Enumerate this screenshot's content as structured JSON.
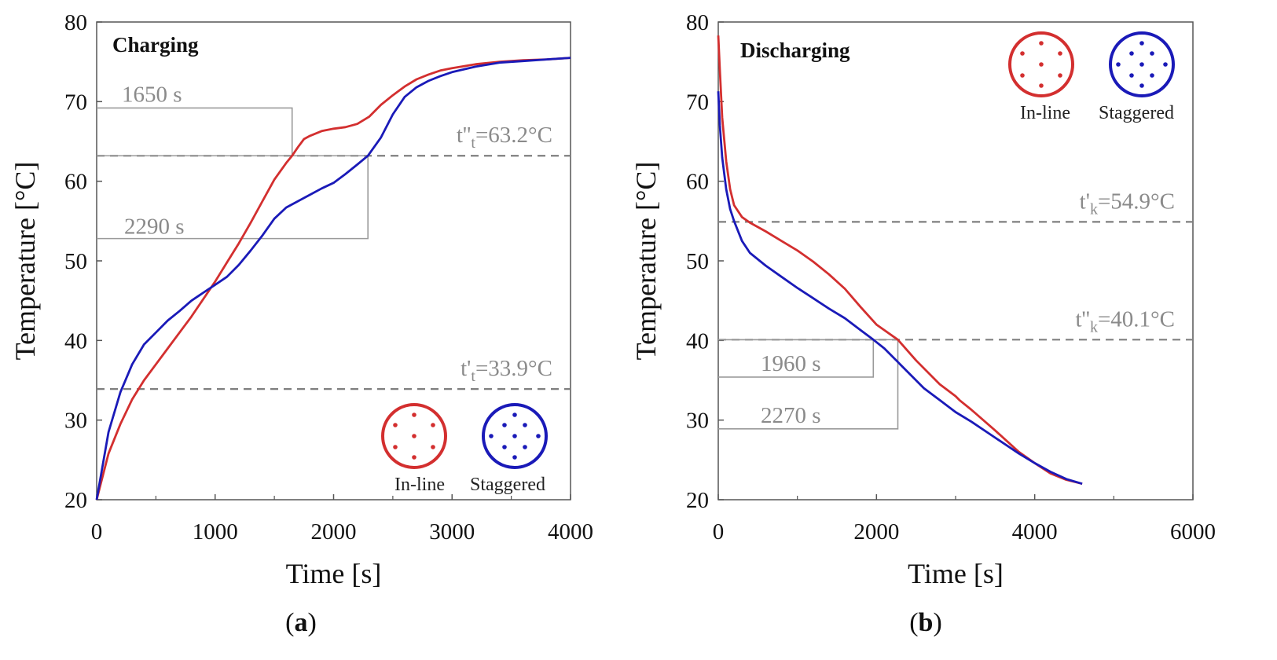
{
  "colors": {
    "inline": "#d32f2f",
    "staggered": "#1a1ab8",
    "threshold": "#7f7f7f",
    "marker": "#9a9a9a",
    "axis": "#555555"
  },
  "chart_data": [
    {
      "type": "line",
      "title": "Charging",
      "caption": {
        "open": "(",
        "letter": "a",
        "close": ")"
      },
      "xlabel": "Time [s]",
      "ylabel": "Temperature [°C]",
      "xlim": [
        0,
        4000
      ],
      "ylim": [
        20,
        80
      ],
      "xticks": [
        0,
        1000,
        2000,
        3000,
        4000
      ],
      "xtick_labels": [
        "0",
        "1000",
        "2000",
        "3000",
        "4000"
      ],
      "yticks": [
        20,
        30,
        40,
        50,
        60,
        70,
        80
      ],
      "ytick_labels": [
        "20",
        "30",
        "40",
        "50",
        "60",
        "70",
        "80"
      ],
      "thresholds": [
        {
          "y": 63.2,
          "label_main": "t''",
          "label_sub": "t",
          "label_rest": "=63.2°C"
        },
        {
          "y": 33.9,
          "label_main": "t'",
          "label_sub": "t",
          "label_rest": "=33.9°C"
        }
      ],
      "markers": [
        {
          "x": 1650,
          "y_top": 69.2,
          "y_bottom": 63.2,
          "label": "1650 s"
        },
        {
          "x": 2290,
          "y_top": 63.2,
          "y_bottom": 52.8,
          "label": "2290 s"
        }
      ],
      "legend": [
        "In-line",
        "Staggered"
      ],
      "legend_position": "bottom-right",
      "series": [
        {
          "name": "In-line",
          "color_key": "inline",
          "x": [
            0,
            100,
            200,
            300,
            400,
            500,
            600,
            700,
            800,
            900,
            1000,
            1100,
            1200,
            1300,
            1400,
            1500,
            1600,
            1650,
            1700,
            1750,
            1800,
            1900,
            2000,
            2100,
            2200,
            2300,
            2400,
            2500,
            2600,
            2700,
            2800,
            2900,
            3000,
            3200,
            3400,
            3600,
            3800,
            4000
          ],
          "y": [
            20,
            25.8,
            29.5,
            32.6,
            35.0,
            37.0,
            39.0,
            41.0,
            43.0,
            45.2,
            47.4,
            49.8,
            52.2,
            54.8,
            57.5,
            60.2,
            62.3,
            63.2,
            64.3,
            65.3,
            65.7,
            66.3,
            66.6,
            66.8,
            67.2,
            68.1,
            69.6,
            70.8,
            71.9,
            72.8,
            73.4,
            73.9,
            74.2,
            74.7,
            75.0,
            75.2,
            75.3,
            75.5
          ]
        },
        {
          "name": "Staggered",
          "color_key": "staggered",
          "x": [
            0,
            100,
            200,
            300,
            400,
            500,
            600,
            700,
            800,
            900,
            1000,
            1100,
            1200,
            1300,
            1400,
            1500,
            1600,
            1700,
            1800,
            1900,
            2000,
            2100,
            2200,
            2290,
            2400,
            2500,
            2600,
            2700,
            2800,
            2900,
            3000,
            3200,
            3400,
            3600,
            3800,
            4000
          ],
          "y": [
            20,
            28.5,
            33.5,
            37.0,
            39.5,
            41.0,
            42.5,
            43.7,
            45.0,
            46.0,
            47.0,
            48.0,
            49.5,
            51.3,
            53.2,
            55.3,
            56.7,
            57.5,
            58.3,
            59.1,
            59.8,
            60.9,
            62.1,
            63.2,
            65.5,
            68.4,
            70.6,
            71.8,
            72.6,
            73.2,
            73.7,
            74.4,
            74.9,
            75.1,
            75.3,
            75.5
          ]
        }
      ]
    },
    {
      "type": "line",
      "title": "Discharging",
      "caption": {
        "open": "(",
        "letter": "b",
        "close": ")"
      },
      "xlabel": "Time [s]",
      "ylabel": "Temperature [°C]",
      "xlim": [
        0,
        6000
      ],
      "ylim": [
        20,
        80
      ],
      "xticks": [
        0,
        2000,
        4000,
        6000
      ],
      "xtick_labels": [
        "0",
        "2000",
        "4000",
        "6000"
      ],
      "yticks": [
        20,
        30,
        40,
        50,
        60,
        70,
        80
      ],
      "ytick_labels": [
        "20",
        "30",
        "40",
        "50",
        "60",
        "70",
        "80"
      ],
      "thresholds": [
        {
          "y": 54.9,
          "label_main": "t'",
          "label_sub": "k",
          "label_rest": "=54.9°C"
        },
        {
          "y": 40.1,
          "label_main": "t''",
          "label_sub": "k",
          "label_rest": "=40.1°C"
        }
      ],
      "markers": [
        {
          "x": 1960,
          "y_top": 40.1,
          "y_bottom": 35.4,
          "label": "1960 s"
        },
        {
          "x": 2270,
          "y_top": 40.1,
          "y_bottom": 28.9,
          "label": "2270 s"
        }
      ],
      "legend": [
        "In-line",
        "Staggered"
      ],
      "legend_position": "top-right",
      "series": [
        {
          "name": "In-line",
          "color_key": "inline",
          "x": [
            0,
            20,
            50,
            100,
            150,
            200,
            300,
            400,
            600,
            800,
            1000,
            1200,
            1400,
            1600,
            1800,
            2000,
            2270,
            2500,
            2800,
            3000,
            3050,
            3200,
            3500,
            3800,
            4000,
            4200,
            4400,
            4600
          ],
          "y": [
            78.3,
            74.0,
            68.0,
            62.5,
            59.0,
            57.0,
            55.5,
            54.8,
            53.7,
            52.5,
            51.3,
            49.9,
            48.3,
            46.5,
            44.2,
            42.0,
            40.1,
            37.5,
            34.5,
            33.0,
            32.5,
            31.3,
            28.7,
            26.0,
            24.6,
            23.3,
            22.5,
            22.0
          ]
        },
        {
          "name": "Staggered",
          "color_key": "staggered",
          "x": [
            0,
            20,
            50,
            100,
            150,
            200,
            300,
            400,
            600,
            800,
            1000,
            1200,
            1400,
            1600,
            1800,
            1960,
            2100,
            2300,
            2600,
            2800,
            3000,
            3200,
            3500,
            3800,
            4000,
            4200,
            4400,
            4600
          ],
          "y": [
            71.3,
            67.0,
            63.0,
            59.0,
            56.5,
            55.0,
            52.5,
            51.0,
            49.4,
            48.0,
            46.6,
            45.3,
            44.0,
            42.8,
            41.3,
            40.1,
            39.0,
            37.0,
            34.0,
            32.5,
            31.0,
            29.8,
            27.8,
            25.8,
            24.6,
            23.5,
            22.6,
            22.0
          ]
        }
      ]
    }
  ]
}
